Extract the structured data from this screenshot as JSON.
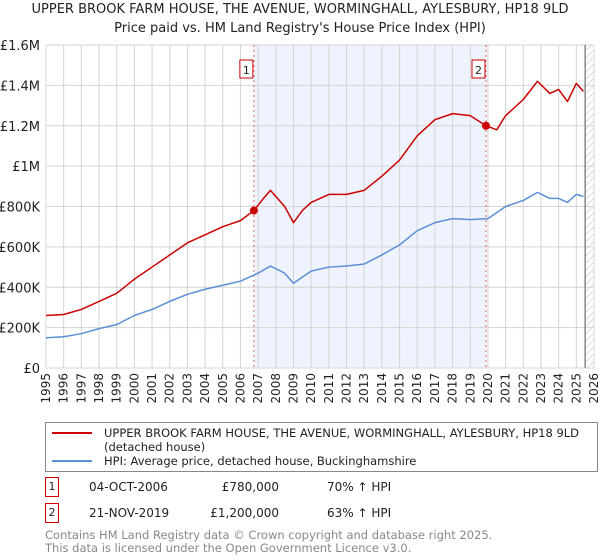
{
  "chart_data": {
    "type": "line",
    "title": "UPPER BROOK FARM HOUSE, THE AVENUE, WORMINGHALL, AYLESBURY, HP18 9LD",
    "subtitle": "Price paid vs. HM Land Registry's House Price Index (HPI)",
    "xlim": [
      1995,
      2026
    ],
    "ylim": [
      0,
      1600000
    ],
    "x_ticks": [
      "1995",
      "1996",
      "1997",
      "1998",
      "1999",
      "2000",
      "2001",
      "2002",
      "2003",
      "2004",
      "2005",
      "2006",
      "2007",
      "2008",
      "2009",
      "2010",
      "2011",
      "2012",
      "2013",
      "2014",
      "2015",
      "2016",
      "2017",
      "2018",
      "2019",
      "2020",
      "2021",
      "2022",
      "2023",
      "2024",
      "2025",
      "2026"
    ],
    "y_ticks": [
      {
        "v": 0,
        "l": "£0"
      },
      {
        "v": 200000,
        "l": "£200K"
      },
      {
        "v": 400000,
        "l": "£400K"
      },
      {
        "v": 600000,
        "l": "£600K"
      },
      {
        "v": 800000,
        "l": "£800K"
      },
      {
        "v": 1000000,
        "l": "£1M"
      },
      {
        "v": 1200000,
        "l": "£1.2M"
      },
      {
        "v": 1400000,
        "l": "£1.4M"
      },
      {
        "v": 1600000,
        "l": "£1.6M"
      }
    ],
    "grid": true,
    "shaded_range": [
      2006.76,
      2019.89
    ],
    "hatched_from": 2025.5,
    "series": [
      {
        "name": "UPPER BROOK FARM HOUSE, THE AVENUE, WORMINGHALL, AYLESBURY, HP18 9LD (detached house)",
        "color": "#cc0000",
        "x": [
          1995,
          1996,
          1997,
          1998,
          1999,
          2000,
          2001,
          2002,
          2003,
          2004,
          2005,
          2006,
          2006.76,
          2007.3,
          2007.7,
          2008.5,
          2009,
          2009.5,
          2010,
          2011,
          2012,
          2013,
          2014,
          2015,
          2016,
          2017,
          2018,
          2019,
          2019.89,
          2020.5,
          2021,
          2022,
          2022.8,
          2023.5,
          2024,
          2024.5,
          2025,
          2025.4
        ],
        "y": [
          260000,
          265000,
          290000,
          330000,
          370000,
          440000,
          500000,
          560000,
          620000,
          660000,
          700000,
          730000,
          780000,
          840000,
          880000,
          800000,
          720000,
          780000,
          820000,
          860000,
          860000,
          880000,
          950000,
          1030000,
          1150000,
          1230000,
          1260000,
          1250000,
          1200000,
          1180000,
          1250000,
          1330000,
          1420000,
          1360000,
          1380000,
          1320000,
          1410000,
          1370000
        ]
      },
      {
        "name": "HPI: Average price, detached house, Buckinghamshire",
        "color": "#5b8fd6",
        "x": [
          1995,
          1996,
          1997,
          1998,
          1999,
          2000,
          2001,
          2002,
          2003,
          2004,
          2005,
          2006,
          2007,
          2007.7,
          2008.5,
          2009,
          2009.5,
          2010,
          2011,
          2012,
          2013,
          2014,
          2015,
          2016,
          2017,
          2018,
          2019,
          2020,
          2021,
          2022,
          2022.8,
          2023.5,
          2024,
          2024.5,
          2025,
          2025.4
        ],
        "y": [
          150000,
          155000,
          170000,
          195000,
          215000,
          260000,
          290000,
          330000,
          365000,
          390000,
          410000,
          430000,
          470000,
          505000,
          470000,
          420000,
          450000,
          480000,
          500000,
          505000,
          515000,
          560000,
          610000,
          680000,
          720000,
          740000,
          735000,
          740000,
          800000,
          830000,
          870000,
          840000,
          840000,
          820000,
          860000,
          850000
        ]
      }
    ],
    "sales": [
      {
        "label": "1",
        "x": 2006.76,
        "y": 780000
      },
      {
        "label": "2",
        "x": 2019.89,
        "y": 1200000
      }
    ]
  },
  "legend": {
    "red": "UPPER BROOK FARM HOUSE, THE AVENUE, WORMINGHALL, AYLESBURY, HP18 9LD (detached house)",
    "blue": "HPI: Average price, detached house, Buckinghamshire"
  },
  "transactions": [
    {
      "n": "1",
      "date": "04-OCT-2006",
      "price": "£780,000",
      "hpi": "70% ↑ HPI"
    },
    {
      "n": "2",
      "date": "21-NOV-2019",
      "price": "£1,200,000",
      "hpi": "63% ↑ HPI"
    }
  ],
  "footer": [
    "Contains HM Land Registry data © Crown copyright and database right 2025.",
    "This data is licensed under the Open Government Licence v3.0."
  ]
}
